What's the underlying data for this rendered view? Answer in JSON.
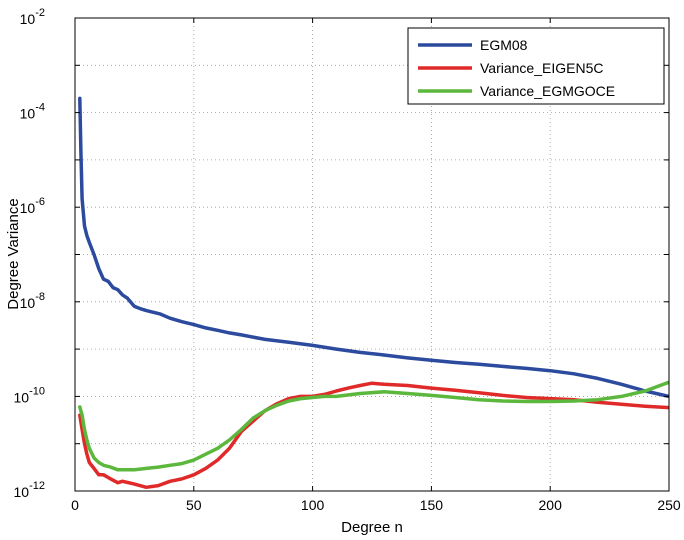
{
  "chart_data": {
    "type": "line",
    "xlabel": "Degree n",
    "ylabel": "Degree Variance",
    "y_scale": "log",
    "xlim": [
      0,
      250
    ],
    "ylim": [
      1e-12,
      0.01
    ],
    "grid": true,
    "legend_position": "top-right",
    "x_ticks": [
      0,
      50,
      100,
      150,
      200,
      250
    ],
    "x_tick_labels": [
      "0",
      "50",
      "100",
      "150",
      "200",
      "250"
    ],
    "y_ticks": [
      1e-12,
      1e-10,
      1e-08,
      1e-06,
      0.0001,
      0.01
    ],
    "y_tick_labels": [
      {
        "base": "10",
        "exp": "-12"
      },
      {
        "base": "10",
        "exp": "-10"
      },
      {
        "base": "10",
        "exp": "-8"
      },
      {
        "base": "10",
        "exp": "-6"
      },
      {
        "base": "10",
        "exp": "-4"
      },
      {
        "base": "10",
        "exp": "-2"
      }
    ],
    "series": [
      {
        "name": "EGM08",
        "color": "#2c4b9e",
        "x": [
          2,
          2.5,
          3,
          4,
          5,
          6,
          8,
          10,
          12,
          14,
          16,
          18,
          20,
          22,
          25,
          28,
          30,
          33,
          36,
          40,
          45,
          50,
          55,
          60,
          65,
          70,
          80,
          90,
          100,
          110,
          120,
          130,
          140,
          150,
          160,
          170,
          180,
          190,
          200,
          210,
          220,
          230,
          240,
          250
        ],
        "values": [
          0.0002,
          1.5e-05,
          1.5e-06,
          4e-07,
          2.5e-07,
          1.8e-07,
          1e-07,
          5e-08,
          3e-08,
          2.7e-08,
          2e-08,
          1.8e-08,
          1.4e-08,
          1.2e-08,
          8e-09,
          7e-09,
          6.5e-09,
          6e-09,
          5.5e-09,
          4.5e-09,
          3.8e-09,
          3.3e-09,
          2.8e-09,
          2.5e-09,
          2.2e-09,
          2e-09,
          1.6e-09,
          1.4e-09,
          1.2e-09,
          1e-09,
          8.5e-10,
          7.5e-10,
          6.5e-10,
          5.8e-10,
          5.2e-10,
          4.8e-10,
          4.3e-10,
          3.9e-10,
          3.5e-10,
          3e-10,
          2.4e-10,
          1.8e-10,
          1.3e-10,
          1e-10
        ]
      },
      {
        "name": "Variance_EIGEN5C",
        "color": "#e02a2a",
        "x": [
          2,
          3,
          4,
          5,
          6,
          8,
          10,
          12,
          15,
          18,
          20,
          25,
          30,
          35,
          40,
          45,
          50,
          55,
          60,
          65,
          70,
          75,
          80,
          85,
          90,
          95,
          100,
          105,
          110,
          115,
          120,
          125,
          130,
          140,
          150,
          160,
          170,
          180,
          190,
          200,
          210,
          220,
          230,
          240,
          250
        ],
        "values": [
          4e-11,
          2e-11,
          1e-11,
          6e-12,
          4e-12,
          3e-12,
          2.2e-12,
          2.2e-12,
          1.8e-12,
          1.5e-12,
          1.6e-12,
          1.4e-12,
          1.2e-12,
          1.3e-12,
          1.6e-12,
          1.8e-12,
          2.2e-12,
          3e-12,
          4.5e-12,
          8e-12,
          1.8e-11,
          3e-11,
          5e-11,
          7e-11,
          9e-11,
          1e-10,
          1e-10,
          1.1e-10,
          1.3e-10,
          1.5e-10,
          1.7e-10,
          1.9e-10,
          1.8e-10,
          1.7e-10,
          1.5e-10,
          1.35e-10,
          1.2e-10,
          1.05e-10,
          9.5e-11,
          9e-11,
          8.5e-11,
          7.5e-11,
          6.8e-11,
          6.2e-11,
          5.8e-11
        ]
      },
      {
        "name": "Variance_EGMGOCE",
        "color": "#5cb83c",
        "x": [
          2,
          3,
          4,
          5,
          6,
          8,
          10,
          12,
          15,
          18,
          20,
          25,
          30,
          35,
          40,
          45,
          50,
          55,
          60,
          65,
          70,
          75,
          80,
          85,
          90,
          95,
          100,
          105,
          110,
          120,
          130,
          140,
          150,
          160,
          170,
          180,
          190,
          200,
          210,
          220,
          230,
          240,
          250
        ],
        "values": [
          6e-11,
          4e-11,
          2e-11,
          1.2e-11,
          8e-12,
          5e-12,
          4e-12,
          3.5e-12,
          3.2e-12,
          2.8e-12,
          2.8e-12,
          2.8e-12,
          3e-12,
          3.2e-12,
          3.5e-12,
          3.8e-12,
          4.5e-12,
          6e-12,
          8e-12,
          1.2e-11,
          2e-11,
          3.5e-11,
          5e-11,
          6.5e-11,
          8e-11,
          9e-11,
          9.5e-11,
          1e-10,
          1e-10,
          1.15e-10,
          1.25e-10,
          1.15e-10,
          1.05e-10,
          9.5e-11,
          8.5e-11,
          8e-11,
          7.8e-11,
          7.8e-11,
          8e-11,
          8.5e-11,
          1e-10,
          1.3e-10,
          2e-10
        ]
      }
    ]
  }
}
